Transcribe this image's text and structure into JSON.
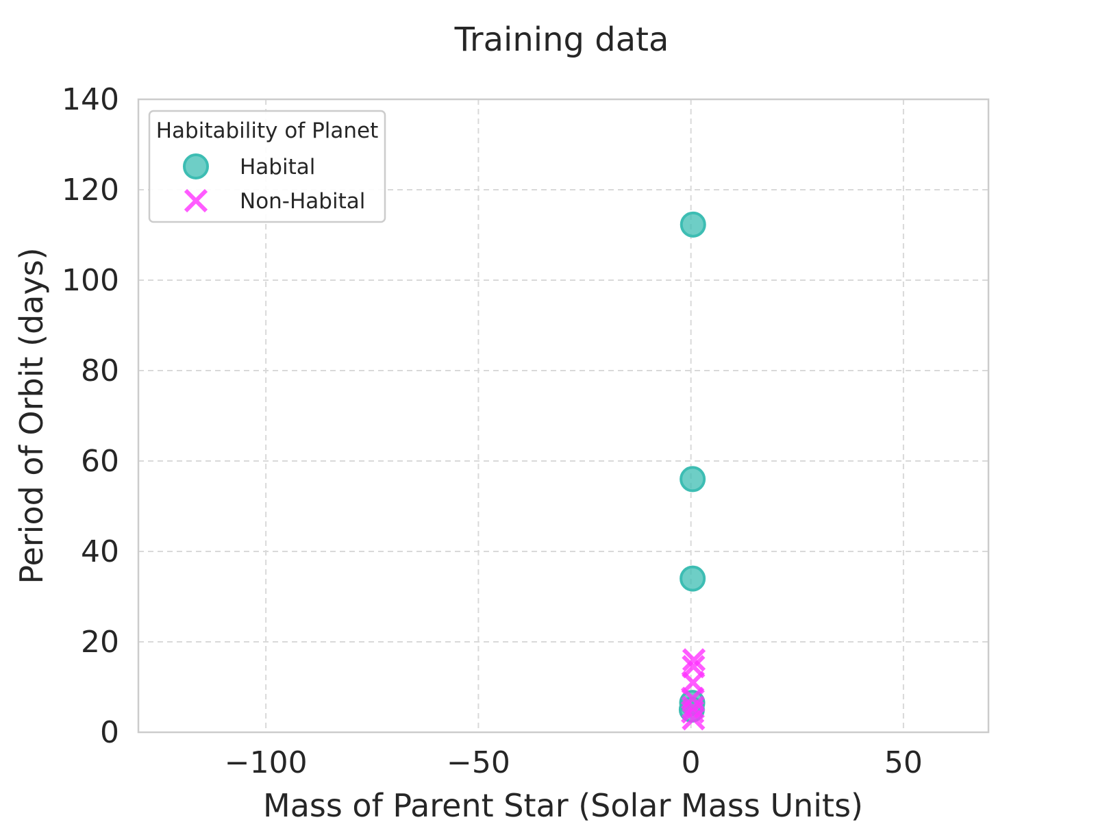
{
  "chart_data": {
    "type": "scatter",
    "title": "Training data",
    "xlabel": "Mass of Parent Star (Solar Mass Units)",
    "ylabel": "Period of Orbit (days)",
    "xlim": [
      -130,
      70
    ],
    "ylim": [
      0,
      140
    ],
    "xticks": [
      -100,
      -50,
      0,
      50
    ],
    "xtick_labels": [
      "−100",
      "−50",
      "0",
      "50"
    ],
    "yticks": [
      0,
      20,
      40,
      60,
      80,
      100,
      120,
      140
    ],
    "ytick_labels": [
      "0",
      "20",
      "40",
      "60",
      "80",
      "100",
      "120",
      "140"
    ],
    "grid": true,
    "legend": {
      "title": "Habitability of Planet",
      "placement": "top-left"
    },
    "series": [
      {
        "name": "Habital",
        "marker": "circle",
        "color": "#3dbdb3",
        "points": [
          {
            "x": 0.5,
            "y": 112.3
          },
          {
            "x": 0.4,
            "y": 56.0
          },
          {
            "x": 0.4,
            "y": 34.0
          },
          {
            "x": 0.3,
            "y": 6.5
          },
          {
            "x": 0.2,
            "y": 5.0
          }
        ]
      },
      {
        "name": "Non-Habital",
        "marker": "x",
        "color": "#ff33ff",
        "points": [
          {
            "x": 0.7,
            "y": 16.0
          },
          {
            "x": 0.6,
            "y": 14.5
          },
          {
            "x": 0.5,
            "y": 11.0
          },
          {
            "x": 0.4,
            "y": 7.5
          },
          {
            "x": 0.5,
            "y": 5.5
          },
          {
            "x": 0.4,
            "y": 4.5
          },
          {
            "x": 0.6,
            "y": 3.0
          }
        ]
      }
    ]
  }
}
